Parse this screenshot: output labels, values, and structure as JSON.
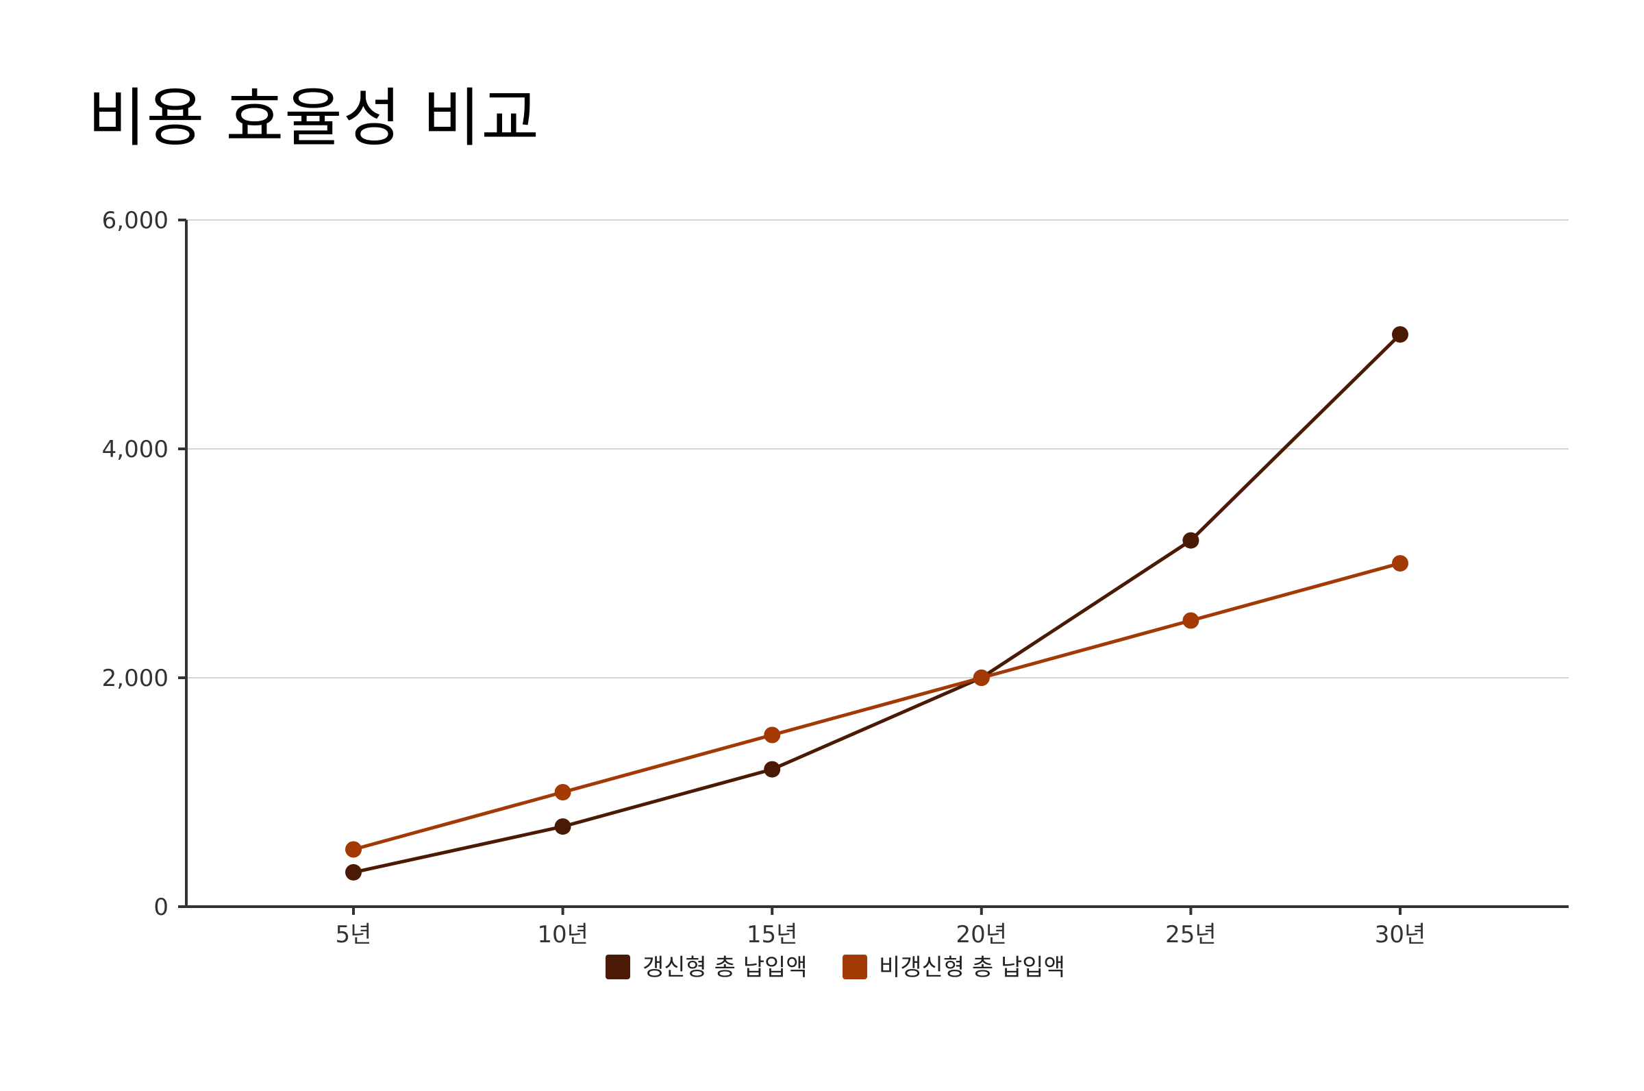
{
  "chart_data": {
    "type": "line",
    "title": "비용 효율성 비교",
    "xlabel": "",
    "ylabel": "",
    "categories": [
      "5년",
      "10년",
      "15년",
      "20년",
      "25년",
      "30년"
    ],
    "series": [
      {
        "name": "갱신형 총 납입액",
        "color": "#4a1a05",
        "values": [
          300,
          700,
          1200,
          2000,
          3200,
          5000
        ]
      },
      {
        "name": "비갱신형 총 납입액",
        "color": "#a33a06",
        "values": [
          500,
          1000,
          1500,
          2000,
          2500,
          3000
        ]
      }
    ],
    "ylim": [
      0,
      6000
    ],
    "yticks": [
      0,
      2000,
      4000,
      6000
    ],
    "ytick_labels": [
      "0",
      "2,000",
      "4,000",
      "6,000"
    ],
    "grid": true,
    "legend_position": "bottom-center"
  }
}
